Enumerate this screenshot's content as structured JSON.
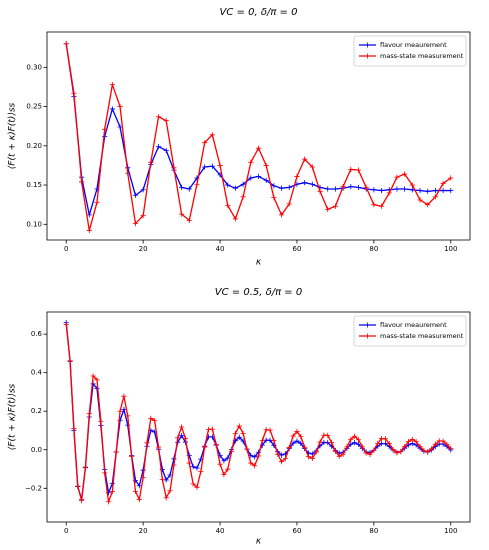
{
  "chart_data": [
    {
      "type": "line",
      "title": "VC = 0, δ/π = 0",
      "x_label": "κ",
      "y_label": "⟨F(t + κ)F(t)⟩ss",
      "x": [
        0,
        2,
        4,
        6,
        8,
        10,
        12,
        14,
        16,
        18,
        20,
        22,
        24,
        26,
        28,
        30,
        32,
        34,
        36,
        38,
        40,
        42,
        44,
        46,
        48,
        50,
        52,
        54,
        56,
        58,
        60,
        62,
        64,
        66,
        68,
        70,
        72,
        74,
        76,
        78,
        80,
        82,
        84,
        86,
        88,
        90,
        92,
        94,
        96,
        98,
        100
      ],
      "series": [
        {
          "name": "flavour meaurement",
          "color": "#0000ff",
          "values": [
            0.33,
            0.263,
            0.16,
            0.112,
            0.145,
            0.212,
            0.247,
            0.224,
            0.172,
            0.137,
            0.144,
            0.176,
            0.199,
            0.194,
            0.169,
            0.147,
            0.145,
            0.159,
            0.173,
            0.174,
            0.163,
            0.15,
            0.146,
            0.151,
            0.159,
            0.161,
            0.156,
            0.149,
            0.146,
            0.147,
            0.151,
            0.153,
            0.151,
            0.147,
            0.145,
            0.145,
            0.146,
            0.148,
            0.147,
            0.145,
            0.144,
            0.143,
            0.144,
            0.145,
            0.145,
            0.144,
            0.143,
            0.142,
            0.143,
            0.143,
            0.143
          ]
        },
        {
          "name": "mass-state measurement",
          "color": "#ff0000",
          "values": [
            0.33,
            0.267,
            0.154,
            0.092,
            0.128,
            0.221,
            0.278,
            0.25,
            0.165,
            0.101,
            0.111,
            0.179,
            0.237,
            0.232,
            0.172,
            0.113,
            0.105,
            0.151,
            0.204,
            0.214,
            0.175,
            0.124,
            0.107,
            0.135,
            0.179,
            0.197,
            0.175,
            0.134,
            0.112,
            0.126,
            0.161,
            0.183,
            0.173,
            0.142,
            0.119,
            0.123,
            0.148,
            0.17,
            0.169,
            0.147,
            0.125,
            0.123,
            0.14,
            0.16,
            0.164,
            0.15,
            0.131,
            0.125,
            0.135,
            0.152,
            0.159
          ]
        }
      ],
      "xlim": [
        -5,
        105
      ],
      "xticks": [
        0,
        20,
        40,
        60,
        80,
        100
      ],
      "ylim": [
        0.08,
        0.345
      ],
      "yticks": [
        {
          "value": 0.1,
          "label": "0.10"
        },
        0.15,
        {
          "value": 0.2,
          "label": "0.20"
        },
        0.25,
        {
          "value": 0.3,
          "label": "0.30"
        }
      ],
      "legend": "upper right"
    },
    {
      "type": "line",
      "title": "VC = 0.5, δ/π = 0",
      "x_label": "κ",
      "y_label": "⟨F(t + κ)F(t)⟩ss",
      "x": [
        0,
        1,
        2,
        3,
        4,
        5,
        6,
        7,
        8,
        9,
        10,
        11,
        12,
        13,
        14,
        15,
        16,
        17,
        18,
        19,
        20,
        21,
        22,
        23,
        24,
        25,
        26,
        27,
        28,
        29,
        30,
        31,
        32,
        33,
        34,
        35,
        36,
        37,
        38,
        39,
        40,
        41,
        42,
        43,
        44,
        45,
        46,
        47,
        48,
        49,
        50,
        51,
        52,
        53,
        54,
        55,
        56,
        57,
        58,
        59,
        60,
        61,
        62,
        63,
        64,
        65,
        66,
        67,
        68,
        69,
        70,
        71,
        72,
        73,
        74,
        75,
        76,
        77,
        78,
        79,
        80,
        81,
        82,
        83,
        84,
        85,
        86,
        87,
        88,
        89,
        90,
        91,
        92,
        93,
        94,
        95,
        96,
        97,
        98,
        99,
        100
      ],
      "series": [
        {
          "name": "flavour meaurement",
          "color": "#0000ff",
          "values": [
            0.66,
            0.459,
            0.101,
            -0.191,
            -0.257,
            -0.09,
            0.17,
            0.342,
            0.318,
            0.126,
            -0.102,
            -0.223,
            -0.176,
            -0.011,
            0.153,
            0.209,
            0.128,
            -0.029,
            -0.159,
            -0.187,
            -0.106,
            0.018,
            0.101,
            0.092,
            0.003,
            -0.102,
            -0.157,
            -0.131,
            -0.047,
            0.039,
            0.073,
            0.04,
            -0.03,
            -0.088,
            -0.095,
            -0.049,
            0.019,
            0.067,
            0.067,
            0.024,
            -0.029,
            -0.057,
            -0.043,
            0.002,
            0.047,
            0.065,
            0.045,
            0.004,
            -0.03,
            -0.037,
            -0.013,
            0.024,
            0.05,
            0.049,
            0.023,
            -0.01,
            -0.028,
            -0.021,
            0.006,
            0.034,
            0.045,
            0.033,
            0.006,
            -0.017,
            -0.022,
            -0.006,
            0.02,
            0.038,
            0.037,
            0.019,
            -0.004,
            -0.018,
            -0.013,
            0.007,
            0.028,
            0.037,
            0.028,
            0.007,
            -0.011,
            -0.015,
            -0.003,
            0.018,
            0.032,
            0.032,
            0.017,
            -0.002,
            -0.013,
            -0.009,
            0.008,
            0.025,
            0.033,
            0.025,
            0.008,
            -0.008,
            -0.012,
            -0.001,
            0.017,
            0.03,
            0.03,
            0.017,
            -0.001
          ]
        },
        {
          "name": "mass-state measurement",
          "color": "#ff0000",
          "values": [
            0.65,
            0.462,
            0.111,
            -0.189,
            -0.264,
            -0.093,
            0.188,
            0.383,
            0.363,
            0.148,
            -0.12,
            -0.27,
            -0.217,
            -0.012,
            0.2,
            0.278,
            0.176,
            -0.035,
            -0.216,
            -0.258,
            -0.145,
            0.036,
            0.163,
            0.151,
            0.014,
            -0.155,
            -0.249,
            -0.213,
            -0.079,
            0.062,
            0.118,
            0.059,
            -0.069,
            -0.177,
            -0.195,
            -0.113,
            0.014,
            0.105,
            0.107,
            0.027,
            -0.075,
            -0.129,
            -0.101,
            -0.009,
            0.085,
            0.123,
            0.085,
            0.002,
            -0.069,
            -0.083,
            -0.032,
            0.048,
            0.104,
            0.102,
            0.047,
            -0.023,
            -0.062,
            -0.046,
            0.012,
            0.071,
            0.095,
            0.068,
            0.013,
            -0.036,
            -0.045,
            -0.012,
            0.04,
            0.076,
            0.075,
            0.038,
            -0.008,
            -0.034,
            -0.023,
            0.015,
            0.054,
            0.07,
            0.052,
            0.015,
            -0.017,
            -0.024,
            -0.002,
            0.033,
            0.058,
            0.057,
            0.032,
            0.001,
            -0.016,
            -0.009,
            0.016,
            0.043,
            0.054,
            0.042,
            0.017,
            -0.005,
            -0.01,
            0.005,
            0.029,
            0.046,
            0.045,
            0.028,
            0.007
          ]
        }
      ],
      "xlim": [
        -5,
        105
      ],
      "xticks": [
        0,
        20,
        40,
        60,
        80,
        100
      ],
      "ylim": [
        -0.375,
        0.715
      ],
      "yticks": [
        {
          "value": -0.2,
          "label": "−0.2"
        },
        {
          "value": 0,
          "label": "0.0"
        },
        0.2,
        0.4,
        0.6
      ],
      "legend": "upper right"
    }
  ]
}
